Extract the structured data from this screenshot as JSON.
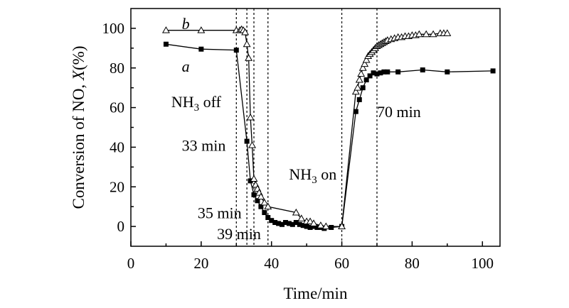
{
  "chart_data": {
    "type": "line",
    "xlabel": "Time/min",
    "ylabel": "Conversion of NO, X(%)",
    "xlim": [
      0,
      105
    ],
    "ylim": [
      -10,
      110
    ],
    "xticks": [
      0,
      20,
      40,
      60,
      80,
      100
    ],
    "yticks": [
      0,
      20,
      40,
      60,
      80,
      100
    ],
    "grid": false,
    "series": [
      {
        "name": "a",
        "marker": "filled-square",
        "points": [
          [
            10,
            92
          ],
          [
            20,
            89.5
          ],
          [
            30,
            89
          ],
          [
            33,
            43
          ],
          [
            34,
            23
          ],
          [
            35,
            16
          ],
          [
            36,
            13
          ],
          [
            37,
            10
          ],
          [
            38,
            7
          ],
          [
            39,
            4.5
          ],
          [
            40,
            3
          ],
          [
            41,
            2
          ],
          [
            42,
            1.5
          ],
          [
            43,
            1
          ],
          [
            44,
            2
          ],
          [
            45,
            1.5
          ],
          [
            46,
            1
          ],
          [
            47,
            2
          ],
          [
            48,
            1
          ],
          [
            49,
            0.5
          ],
          [
            50,
            0
          ],
          [
            51,
            -0.5
          ],
          [
            52,
            0
          ],
          [
            53,
            -0.5
          ],
          [
            54,
            -0.5
          ],
          [
            55,
            -1
          ],
          [
            57,
            -0.5
          ],
          [
            60,
            0
          ],
          [
            64,
            58
          ],
          [
            65,
            64
          ],
          [
            66,
            70
          ],
          [
            67,
            74
          ],
          [
            68,
            76
          ],
          [
            69,
            77.5
          ],
          [
            70,
            77
          ],
          [
            71,
            77.5
          ],
          [
            72,
            78
          ],
          [
            73,
            78
          ],
          [
            76,
            78
          ],
          [
            83,
            79
          ],
          [
            90,
            78
          ],
          [
            103,
            78.5
          ]
        ]
      },
      {
        "name": "b",
        "marker": "open-triangle",
        "points": [
          [
            10,
            99
          ],
          [
            20,
            99
          ],
          [
            30,
            99
          ],
          [
            31,
            99
          ],
          [
            31.5,
            99.5
          ],
          [
            32,
            99
          ],
          [
            32.5,
            98
          ],
          [
            33,
            92
          ],
          [
            33.5,
            85
          ],
          [
            34,
            55
          ],
          [
            34.5,
            41
          ],
          [
            35,
            24
          ],
          [
            35.5,
            21
          ],
          [
            36,
            19
          ],
          [
            36.5,
            17
          ],
          [
            37,
            15
          ],
          [
            38,
            12
          ],
          [
            39,
            10
          ],
          [
            47,
            7
          ],
          [
            48.5,
            4
          ],
          [
            50,
            2.5
          ],
          [
            51,
            2.5
          ],
          [
            52,
            1.5
          ],
          [
            54,
            0.5
          ],
          [
            55.5,
            0
          ],
          [
            60,
            0
          ],
          [
            64,
            68
          ],
          [
            64.5,
            70
          ],
          [
            65,
            74
          ],
          [
            65.5,
            77
          ],
          [
            66,
            80
          ],
          [
            66.5,
            82
          ],
          [
            67,
            84
          ],
          [
            67.5,
            86
          ],
          [
            68,
            87
          ],
          [
            68.5,
            88
          ],
          [
            69,
            89
          ],
          [
            69.5,
            90
          ],
          [
            70,
            91
          ],
          [
            70.5,
            91.5
          ],
          [
            71,
            92
          ],
          [
            71.5,
            92.5
          ],
          [
            72,
            93
          ],
          [
            72.5,
            93.5
          ],
          [
            73,
            94
          ],
          [
            74,
            94.5
          ],
          [
            75,
            95
          ],
          [
            76,
            95.5
          ],
          [
            77,
            95.5
          ],
          [
            78,
            96
          ],
          [
            79,
            96
          ],
          [
            80,
            96.5
          ],
          [
            81,
            96.5
          ],
          [
            82,
            97
          ],
          [
            84,
            97
          ],
          [
            86,
            97
          ],
          [
            88,
            97.5
          ],
          [
            89,
            97.5
          ],
          [
            90,
            97.5
          ]
        ]
      }
    ],
    "guide_lines_x": [
      30,
      33,
      35,
      39,
      60,
      70
    ],
    "annotations": [
      {
        "key": "label_b",
        "text": "b",
        "x": 14.5,
        "y": 102.5,
        "italic": true
      },
      {
        "key": "label_a",
        "text": "a",
        "x": 14.5,
        "y": 81,
        "italic": true
      },
      {
        "key": "nh3_off",
        "parts": [
          "NH",
          "3",
          " off"
        ],
        "x": 11.5,
        "y": 63
      },
      {
        "key": "min_33",
        "text": "33 min",
        "x": 14.5,
        "y": 41
      },
      {
        "key": "nh3_on",
        "parts": [
          "NH",
          "3",
          " on"
        ],
        "x": 45,
        "y": 26.5
      },
      {
        "key": "min_35",
        "text": "35 min",
        "x": 19,
        "y": 7
      },
      {
        "key": "min_39",
        "text": "39 min",
        "x": 24.5,
        "y": -3.5
      },
      {
        "key": "min_70",
        "text": "70 min",
        "x": 70,
        "y": 58
      }
    ]
  }
}
